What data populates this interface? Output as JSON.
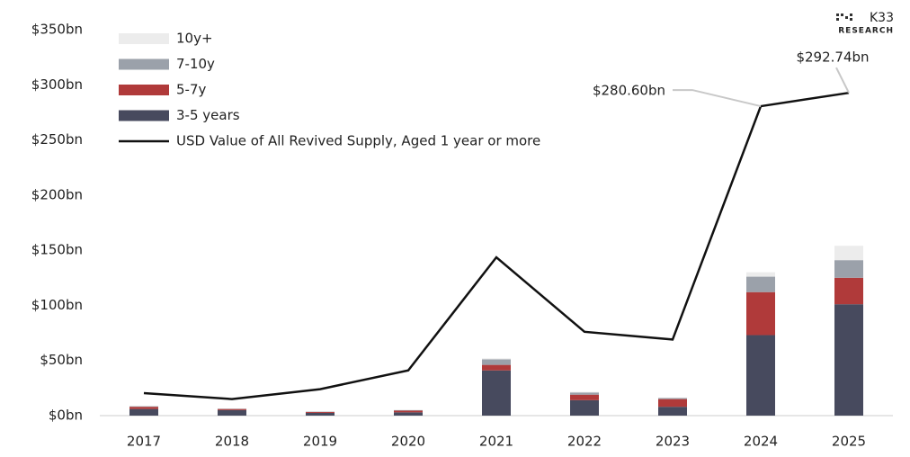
{
  "chart_data": {
    "type": "bar",
    "brand": {
      "name": "K33",
      "subtitle": "RESEARCH"
    },
    "categories": [
      "2017",
      "2018",
      "2019",
      "2020",
      "2021",
      "2022",
      "2023",
      "2024",
      "2025"
    ],
    "series": [
      {
        "name": "3-5 years",
        "color": "#474a5e",
        "values": [
          6,
          5,
          2.5,
          3,
          41,
          14,
          8,
          73,
          101
        ]
      },
      {
        "name": "5-7y",
        "color": "#b03a3a",
        "values": [
          2,
          1,
          0.8,
          1.5,
          5,
          5,
          7,
          39,
          24
        ]
      },
      {
        "name": "7-10y",
        "color": "#9ba1aa",
        "values": [
          0.5,
          0.3,
          0.3,
          0.5,
          5,
          2,
          1,
          14,
          16
        ]
      },
      {
        "name": "10y+",
        "color": "#ececec",
        "values": [
          0,
          0,
          0,
          0,
          1,
          0.5,
          0.3,
          4,
          13
        ]
      },
      {
        "name": "USD Value of All Revived Supply, Aged 1 year or more",
        "type": "line",
        "color": "#111111",
        "values": [
          20.4,
          15,
          24,
          41,
          143.6,
          76,
          69,
          280.6,
          292.74
        ],
        "value_labels": [
          null,
          null,
          null,
          null,
          null,
          null,
          null,
          "$280.60bn",
          "$292.74bn"
        ]
      }
    ],
    "ylim": [
      0,
      350
    ],
    "yticks": [
      {
        "value": 0,
        "label": "$0bn"
      },
      {
        "value": 50,
        "label": "$50bn"
      },
      {
        "value": 100,
        "label": "$100bn"
      },
      {
        "value": 150,
        "label": "$150bn"
      },
      {
        "value": 200,
        "label": "$200bn"
      },
      {
        "value": 250,
        "label": "$250bn"
      },
      {
        "value": 300,
        "label": "$300bn"
      },
      {
        "value": 350,
        "label": "$350bn"
      }
    ],
    "grid": false
  }
}
